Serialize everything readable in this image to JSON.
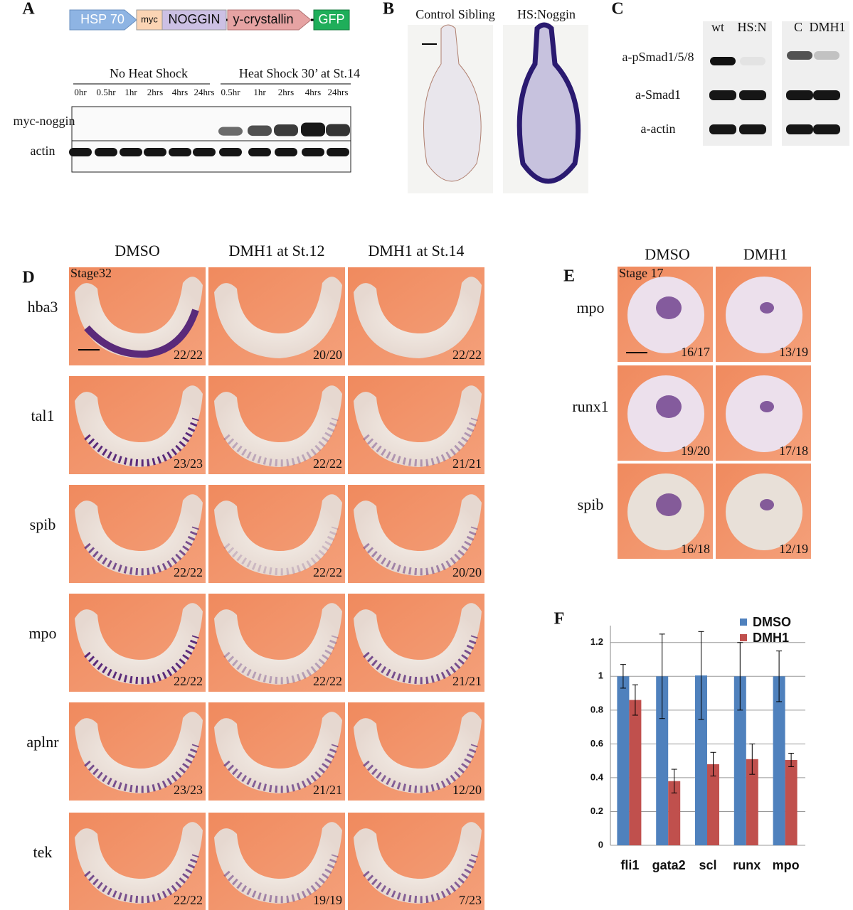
{
  "panel_labels": [
    "A",
    "B",
    "C",
    "D",
    "E",
    "F"
  ],
  "panel_a": {
    "construct": [
      "HSP 70",
      "myc",
      "NOGGIN",
      "y-crystallin",
      "GFP"
    ],
    "groups": [
      "No Heat Shock",
      "Heat Shock 30’ at St.14"
    ],
    "lanes": [
      "0hr",
      "0.5hr",
      "1hr",
      "2hrs",
      "4hrs",
      "24hrs",
      "0.5hr",
      "1hr",
      "2hrs",
      "4hrs",
      "24hrs"
    ],
    "rows": [
      "myc-noggin",
      "actin"
    ]
  },
  "panel_b": {
    "labels": [
      "Control Sibling",
      "HS:Noggin"
    ]
  },
  "panel_c": {
    "lanes": [
      "wt",
      "HS:N",
      "C",
      "DMH1"
    ],
    "rows": [
      "a-pSmad1/5/8",
      "a-Smad1",
      "a-actin"
    ]
  },
  "panel_d": {
    "columns": [
      "DMSO",
      "DMH1 at St.12",
      "DMH1 at St.14"
    ],
    "stage": "Stage32",
    "genes": [
      "hba3",
      "tal1",
      "spib",
      "mpo",
      "aplnr",
      "tek"
    ],
    "counts": [
      [
        "22/22",
        "20/20",
        "22/22"
      ],
      [
        "23/23",
        "22/22",
        "21/21"
      ],
      [
        "22/22",
        "22/22",
        "20/20"
      ],
      [
        "22/22",
        "22/22",
        "21/21"
      ],
      [
        "23/23",
        "21/21",
        "12/20"
      ],
      [
        "22/22",
        "19/19",
        "7/23"
      ]
    ]
  },
  "panel_e": {
    "columns": [
      "DMSO",
      "DMH1"
    ],
    "stage": "Stage 17",
    "genes": [
      "mpo",
      "runx1",
      "spib"
    ],
    "counts": [
      [
        "16/17",
        "13/19"
      ],
      [
        "19/20",
        "17/18"
      ],
      [
        "16/18",
        "12/19"
      ]
    ]
  },
  "chart_data": {
    "type": "bar",
    "categories": [
      "fli1",
      "gata2",
      "scl",
      "runx",
      "mpo"
    ],
    "series": [
      {
        "name": "DMSO",
        "color": "#4f81bd",
        "values": [
          1,
          1,
          1.005,
          1,
          1
        ],
        "errors": [
          0.07,
          0.25,
          0.26,
          0.2,
          0.15
        ]
      },
      {
        "name": "DMH1",
        "color": "#c0504d",
        "values": [
          0.86,
          0.38,
          0.48,
          0.51,
          0.505
        ],
        "errors": [
          0.09,
          0.07,
          0.07,
          0.09,
          0.04
        ]
      }
    ],
    "ylim": [
      0,
      1.3
    ],
    "yticks": [
      0,
      0.2,
      0.4,
      0.6,
      0.8,
      1,
      1.2
    ],
    "grid": true
  }
}
